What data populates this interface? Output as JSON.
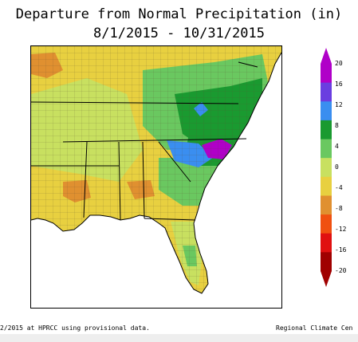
{
  "title": {
    "line1": "Departure from Normal Precipitation (in)",
    "line2": "8/1/2015 - 10/31/2015"
  },
  "legend": {
    "labels": [
      "20",
      "16",
      "12",
      "8",
      "4",
      "0",
      "-4",
      "-8",
      "-12",
      "-16",
      "-20"
    ],
    "colors": [
      "#b000c8",
      "#6a3ee0",
      "#3a8ef0",
      "#1a9a30",
      "#6ac860",
      "#c8e060",
      "#e8d040",
      "#e09030",
      "#f05010",
      "#e01010",
      "#a00000"
    ]
  },
  "map": {
    "region": "Southeastern United States",
    "fill_colors": {
      "very_wet": "#b000c8",
      "wet": "#3a8ef0",
      "moderate_wet": "#1a9a30",
      "light_wet": "#6ac860",
      "near_normal": "#c8e060",
      "dry": "#e8d040",
      "drier": "#e09030"
    }
  },
  "footer": {
    "left": "2/2015 at HPRCC using provisional data.",
    "right": "Regional Climate Cen"
  }
}
